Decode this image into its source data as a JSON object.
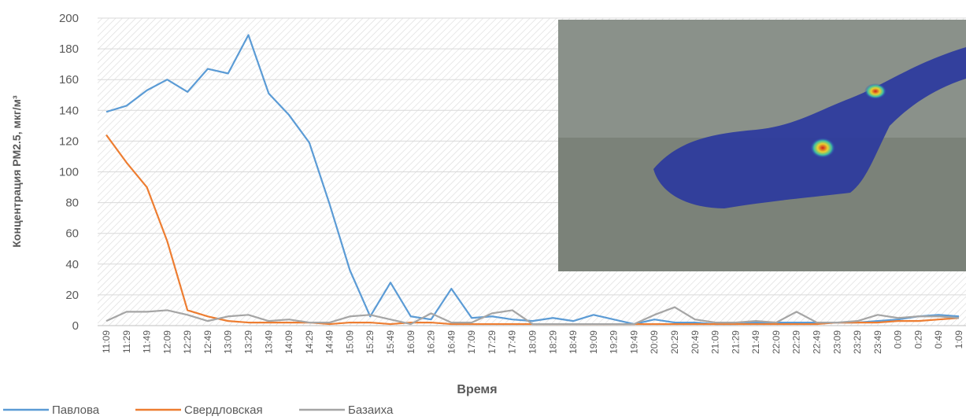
{
  "chart_data": {
    "type": "line",
    "y_label": "Концентрация PM2.5, мкг/м³",
    "x_label": "Время",
    "categories": [
      "11:09",
      "11:29",
      "11:49",
      "12:09",
      "12:29",
      "12:49",
      "13:09",
      "13:29",
      "13:49",
      "14:09",
      "14:29",
      "14:49",
      "15:09",
      "15:29",
      "15:49",
      "16:09",
      "16:29",
      "16:49",
      "17:09",
      "17:29",
      "17:49",
      "18:09",
      "18:29",
      "18:49",
      "19:09",
      "19:29",
      "19:49",
      "20:09",
      "20:29",
      "20:49",
      "21:09",
      "21:29",
      "21:49",
      "22:09",
      "22:29",
      "22:49",
      "23:09",
      "23:29",
      "23:49",
      "0:09",
      "0:29",
      "0:49",
      "1:09"
    ],
    "series": [
      {
        "name": "Павлова",
        "color": "#5b9bd5",
        "values": [
          139,
          143,
          153,
          160,
          152,
          167,
          164,
          189,
          151,
          137,
          119,
          79,
          36,
          6,
          28,
          6,
          4,
          24,
          5,
          6,
          4,
          3,
          5,
          3,
          7,
          4,
          1,
          4,
          2,
          2,
          1,
          1,
          2,
          2,
          2,
          2,
          2,
          2,
          3,
          4,
          6,
          7,
          6
        ]
      },
      {
        "name": "Свердловская",
        "color": "#ed7d31",
        "values": [
          124,
          106,
          90,
          55,
          10,
          6,
          3,
          2,
          2,
          2,
          2,
          1,
          2,
          2,
          1,
          2,
          2,
          1,
          1,
          1,
          1,
          1,
          1,
          1,
          1,
          1,
          1,
          1,
          1,
          1,
          1,
          1,
          1,
          1,
          1,
          1,
          2,
          2,
          2,
          3,
          3,
          4,
          5
        ]
      },
      {
        "name": "Базаиха",
        "color": "#a5a5a5",
        "values": [
          3,
          9,
          9,
          10,
          7,
          3,
          6,
          7,
          3,
          4,
          2,
          2,
          6,
          7,
          4,
          1,
          8,
          2,
          2,
          8,
          10,
          1,
          1,
          1,
          1,
          1,
          1,
          7,
          12,
          4,
          2,
          2,
          3,
          2,
          9,
          2,
          2,
          3,
          7,
          5,
          6,
          6,
          5
        ]
      }
    ],
    "ylim": [
      0,
      200
    ],
    "yticks": [
      0,
      20,
      40,
      60,
      80,
      100,
      120,
      140,
      160,
      180,
      200
    ],
    "grid": true
  }
}
